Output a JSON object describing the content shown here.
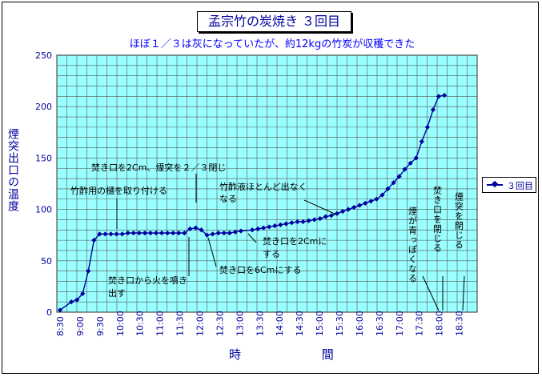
{
  "chart_data": {
    "type": "line",
    "title": "孟宗竹の炭焼き ３回目",
    "subtitle": "ほぼ１／３は灰になっていたが、約12kgの竹炭が収穫できた",
    "xlabel": "時 間",
    "ylabel": "煙突出口の温度",
    "ylim": [
      0,
      250
    ],
    "yticks": [
      0,
      50,
      100,
      150,
      200,
      250
    ],
    "xticks": [
      "8:30",
      "9:00",
      "9:30",
      "10:00",
      "10:30",
      "11:00",
      "11:30",
      "12:00",
      "12:30",
      "13:00",
      "13:30",
      "14:00",
      "14:30",
      "15:00",
      "15:30",
      "16:00",
      "16:30",
      "17:00",
      "17:30",
      "18:00",
      "18:30"
    ],
    "grid": true,
    "legend_position": "right",
    "series": [
      {
        "name": "３回目",
        "color": "#0000a0",
        "x": [
          0,
          2,
          3,
          4,
          5,
          6,
          7,
          8,
          9,
          10,
          11,
          12,
          13,
          14,
          15,
          16,
          17,
          18,
          19,
          20,
          21,
          22,
          23,
          24,
          25,
          26,
          27,
          28,
          29,
          30,
          31,
          32,
          34,
          35,
          36,
          37,
          38,
          39,
          40,
          41,
          42,
          43,
          44,
          45,
          46,
          47,
          48,
          49,
          50,
          51,
          52,
          53,
          54,
          55,
          56,
          57,
          58,
          59,
          60,
          61,
          62,
          63,
          64,
          65,
          66,
          67,
          68
        ],
        "y": [
          2,
          10,
          12,
          18,
          40,
          70,
          76,
          76,
          76,
          76,
          76,
          77,
          77,
          77,
          77,
          77,
          77,
          77,
          77,
          77,
          77,
          77,
          81,
          82,
          80,
          75,
          76,
          77,
          77,
          77,
          78,
          79,
          80,
          81,
          82,
          83,
          84,
          85,
          86,
          87,
          88,
          88,
          89,
          90,
          91,
          93,
          94,
          96,
          98,
          100,
          102,
          104,
          106,
          108,
          110,
          114,
          120,
          126,
          132,
          139,
          145,
          150,
          166,
          180,
          197,
          210,
          211
        ]
      }
    ],
    "annotations": [
      {
        "text": "焚き口を2Cm、煙突を２／３閉じ",
        "x": 23,
        "y": 81
      },
      {
        "text": "竹酢用の樋を取り付ける",
        "x": 7,
        "y": 77
      },
      {
        "text": "竹酢液ほとんど出なく",
        "x": 47,
        "y": 93
      },
      {
        "text": "なる",
        "x": 47,
        "y": 93
      },
      {
        "text": "焚き口を2Cmに",
        "x": 31,
        "y": 78
      },
      {
        "text": "する",
        "x": 31,
        "y": 78
      },
      {
        "text": "焚き口を6Cmにする",
        "x": 25,
        "y": 75
      },
      {
        "text": "焚き口から火を噴き",
        "x": 16,
        "y": 77
      },
      {
        "text": "出す",
        "x": 16,
        "y": 77
      },
      {
        "text": "煙が青っぽくなる",
        "x": 67,
        "y": 0
      },
      {
        "text": "焚き口を閉じる",
        "x": 67,
        "y": 0
      },
      {
        "text": "煙突を閉じる",
        "x": 68,
        "y": 0
      }
    ]
  }
}
